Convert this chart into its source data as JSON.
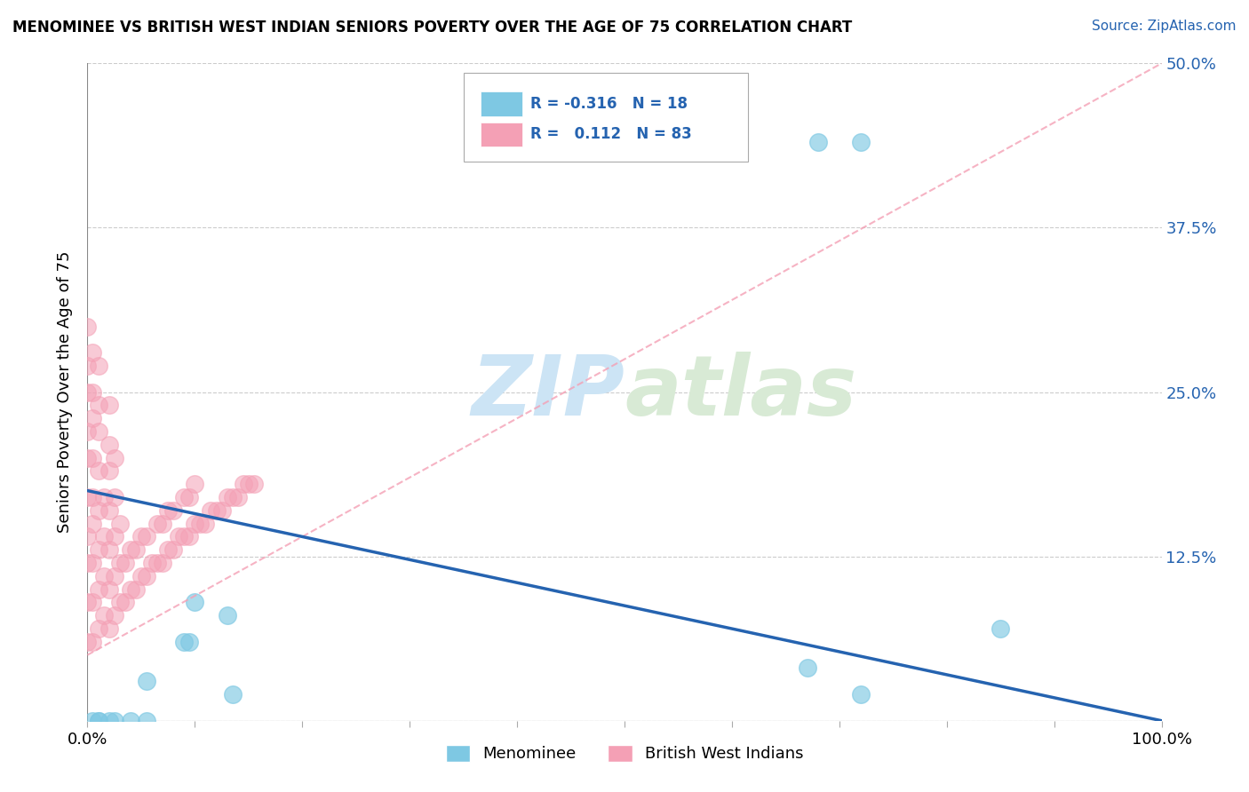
{
  "title": "MENOMINEE VS BRITISH WEST INDIAN SENIORS POVERTY OVER THE AGE OF 75 CORRELATION CHART",
  "source": "Source: ZipAtlas.com",
  "ylabel": "Seniors Poverty Over the Age of 75",
  "xlim": [
    0,
    1.0
  ],
  "ylim": [
    0,
    0.5
  ],
  "yticks": [
    0.0,
    0.125,
    0.25,
    0.375,
    0.5
  ],
  "ytick_labels": [
    "",
    "12.5%",
    "25.0%",
    "37.5%",
    "50.0%"
  ],
  "xtick_positions": [
    0.0,
    0.1,
    0.2,
    0.3,
    0.4,
    0.5,
    0.6,
    0.7,
    0.8,
    0.9,
    1.0
  ],
  "xtick_labels": [
    "0.0%",
    "",
    "",
    "",
    "",
    "",
    "",
    "",
    "",
    "",
    "100.0%"
  ],
  "menominee_color": "#7ec8e3",
  "bwi_color": "#f4a0b5",
  "trend_menominee_color": "#2563b0",
  "trend_bwi_color": "#f4a0b5",
  "R_menominee": -0.316,
  "N_menominee": 18,
  "R_bwi": 0.112,
  "N_bwi": 83,
  "watermark_ZIP": "ZIP",
  "watermark_atlas": "atlas",
  "menominee_x": [
    0.005,
    0.01,
    0.01,
    0.02,
    0.025,
    0.04,
    0.055,
    0.055,
    0.09,
    0.095,
    0.1,
    0.13,
    0.135,
    0.67,
    0.68,
    0.72,
    0.72,
    0.85
  ],
  "menominee_y": [
    0.0,
    0.0,
    0.0,
    0.0,
    0.0,
    0.0,
    0.0,
    0.03,
    0.06,
    0.06,
    0.09,
    0.08,
    0.02,
    0.04,
    0.44,
    0.44,
    0.02,
    0.07
  ],
  "bwi_x": [
    0.0,
    0.0,
    0.0,
    0.0,
    0.0,
    0.0,
    0.0,
    0.0,
    0.0,
    0.0,
    0.005,
    0.005,
    0.005,
    0.005,
    0.005,
    0.005,
    0.005,
    0.005,
    0.005,
    0.01,
    0.01,
    0.01,
    0.01,
    0.01,
    0.01,
    0.01,
    0.01,
    0.015,
    0.015,
    0.015,
    0.015,
    0.02,
    0.02,
    0.02,
    0.02,
    0.02,
    0.02,
    0.02,
    0.025,
    0.025,
    0.025,
    0.025,
    0.025,
    0.03,
    0.03,
    0.03,
    0.035,
    0.035,
    0.04,
    0.04,
    0.045,
    0.045,
    0.05,
    0.05,
    0.055,
    0.055,
    0.06,
    0.065,
    0.065,
    0.07,
    0.07,
    0.075,
    0.075,
    0.08,
    0.08,
    0.085,
    0.09,
    0.09,
    0.095,
    0.095,
    0.1,
    0.1,
    0.105,
    0.11,
    0.115,
    0.12,
    0.125,
    0.13,
    0.135,
    0.14,
    0.145,
    0.15,
    0.155
  ],
  "bwi_y": [
    0.06,
    0.09,
    0.12,
    0.14,
    0.17,
    0.2,
    0.22,
    0.25,
    0.27,
    0.3,
    0.06,
    0.09,
    0.12,
    0.15,
    0.17,
    0.2,
    0.23,
    0.25,
    0.28,
    0.07,
    0.1,
    0.13,
    0.16,
    0.19,
    0.22,
    0.24,
    0.27,
    0.08,
    0.11,
    0.14,
    0.17,
    0.07,
    0.1,
    0.13,
    0.16,
    0.19,
    0.21,
    0.24,
    0.08,
    0.11,
    0.14,
    0.17,
    0.2,
    0.09,
    0.12,
    0.15,
    0.09,
    0.12,
    0.1,
    0.13,
    0.1,
    0.13,
    0.11,
    0.14,
    0.11,
    0.14,
    0.12,
    0.12,
    0.15,
    0.12,
    0.15,
    0.13,
    0.16,
    0.13,
    0.16,
    0.14,
    0.14,
    0.17,
    0.14,
    0.17,
    0.15,
    0.18,
    0.15,
    0.15,
    0.16,
    0.16,
    0.16,
    0.17,
    0.17,
    0.17,
    0.18,
    0.18,
    0.18
  ],
  "trend_men_x0": 0.0,
  "trend_men_y0": 0.175,
  "trend_men_x1": 1.0,
  "trend_men_y1": 0.0,
  "trend_bwi_x0": 0.0,
  "trend_bwi_y0": 0.05,
  "trend_bwi_x1": 1.0,
  "trend_bwi_y1": 0.5
}
